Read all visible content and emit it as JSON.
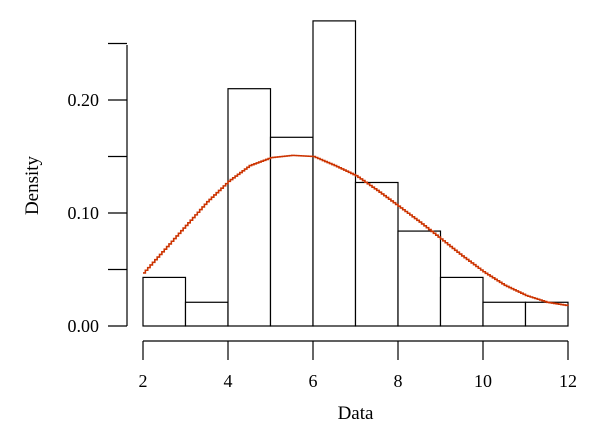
{
  "chart_data": {
    "type": "bar",
    "subtype": "histogram-with-density-curve",
    "xlabel": "Data",
    "ylabel": "Density",
    "xlim": [
      2,
      12
    ],
    "ylim": [
      0,
      0.25
    ],
    "x_ticks": [
      2,
      4,
      6,
      8,
      10,
      12
    ],
    "x_tick_labels": [
      "2",
      "4",
      "6",
      "8",
      "10",
      "12"
    ],
    "y_ticks": [
      0.0,
      0.1,
      0.2
    ],
    "y_tick_labels": [
      "0.00",
      "0.10",
      "0.20"
    ],
    "bins": [
      {
        "x0": 2,
        "x1": 3,
        "density": 0.043
      },
      {
        "x0": 3,
        "x1": 4,
        "density": 0.021
      },
      {
        "x0": 4,
        "x1": 5,
        "density": 0.21
      },
      {
        "x0": 5,
        "x1": 6,
        "density": 0.167
      },
      {
        "x0": 6,
        "x1": 7,
        "density": 0.27
      },
      {
        "x0": 7,
        "x1": 8,
        "density": 0.127
      },
      {
        "x0": 8,
        "x1": 9,
        "density": 0.084
      },
      {
        "x0": 9,
        "x1": 10,
        "density": 0.043
      },
      {
        "x0": 10,
        "x1": 11,
        "density": 0.021
      },
      {
        "x0": 11,
        "x1": 12,
        "density": 0.021
      }
    ],
    "density_curve": {
      "color": "#cc3300",
      "x": [
        2.0,
        2.5,
        3.0,
        3.5,
        4.0,
        4.5,
        5.0,
        5.5,
        6.0,
        6.5,
        7.0,
        7.5,
        8.0,
        8.5,
        9.0,
        9.5,
        10.0,
        10.5,
        11.0,
        11.5,
        12.0
      ],
      "y": [
        0.047,
        0.068,
        0.089,
        0.11,
        0.128,
        0.142,
        0.149,
        0.151,
        0.15,
        0.142,
        0.133,
        0.12,
        0.106,
        0.092,
        0.077,
        0.062,
        0.048,
        0.036,
        0.027,
        0.021,
        0.018
      ]
    },
    "grid": false,
    "legend": "none"
  }
}
